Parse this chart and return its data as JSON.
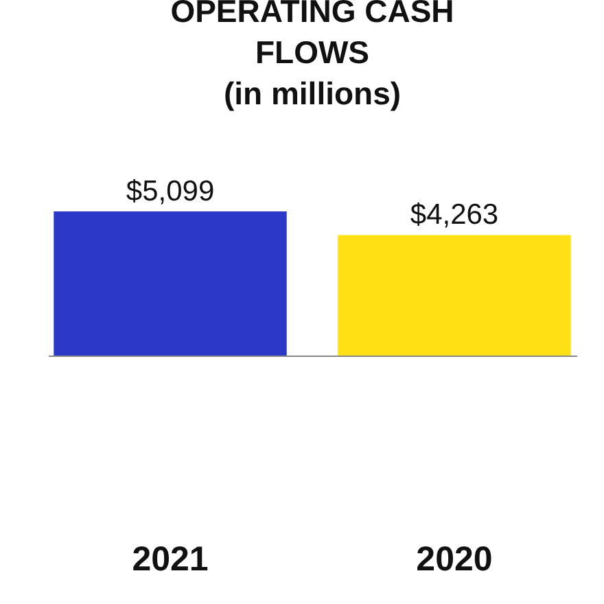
{
  "chart_data": {
    "type": "bar",
    "title": "OPERATING CASH FLOWS",
    "subtitle": "(in millions)",
    "categories": [
      "2021",
      "2020"
    ],
    "values": [
      5099,
      4263
    ],
    "colors": [
      "#2b38c8",
      "#ffe014"
    ],
    "value_labels": [
      "$5,099",
      "$4,263"
    ]
  }
}
